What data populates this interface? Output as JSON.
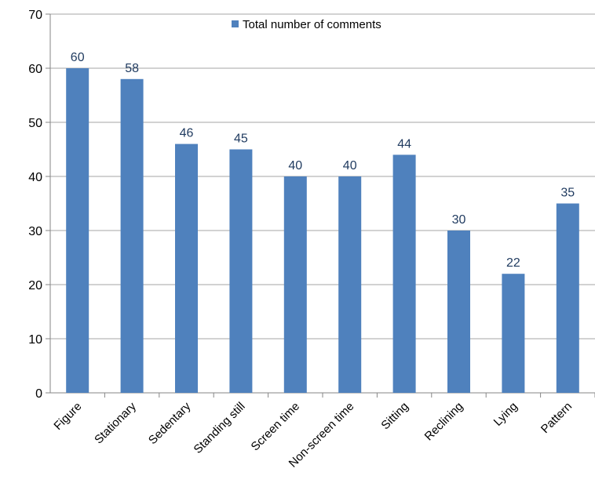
{
  "chart_data": {
    "type": "bar",
    "categories": [
      "Figure",
      "Stationary",
      "Sedentary",
      "Standing still",
      "Screen time",
      "Non-screen time",
      "Sitting",
      "Reclining",
      "Lying",
      "Pattern"
    ],
    "series": [
      {
        "name": "Total number of comments",
        "values": [
          60,
          58,
          46,
          45,
          40,
          40,
          44,
          30,
          22,
          35
        ]
      }
    ],
    "ylim": [
      0,
      70
    ],
    "yticks": [
      0,
      10,
      20,
      30,
      40,
      50,
      60,
      70
    ],
    "grid": true,
    "legend_position": "top-center",
    "bar_color": "#4f81bd",
    "data_label_color": "#1f3a5f"
  }
}
